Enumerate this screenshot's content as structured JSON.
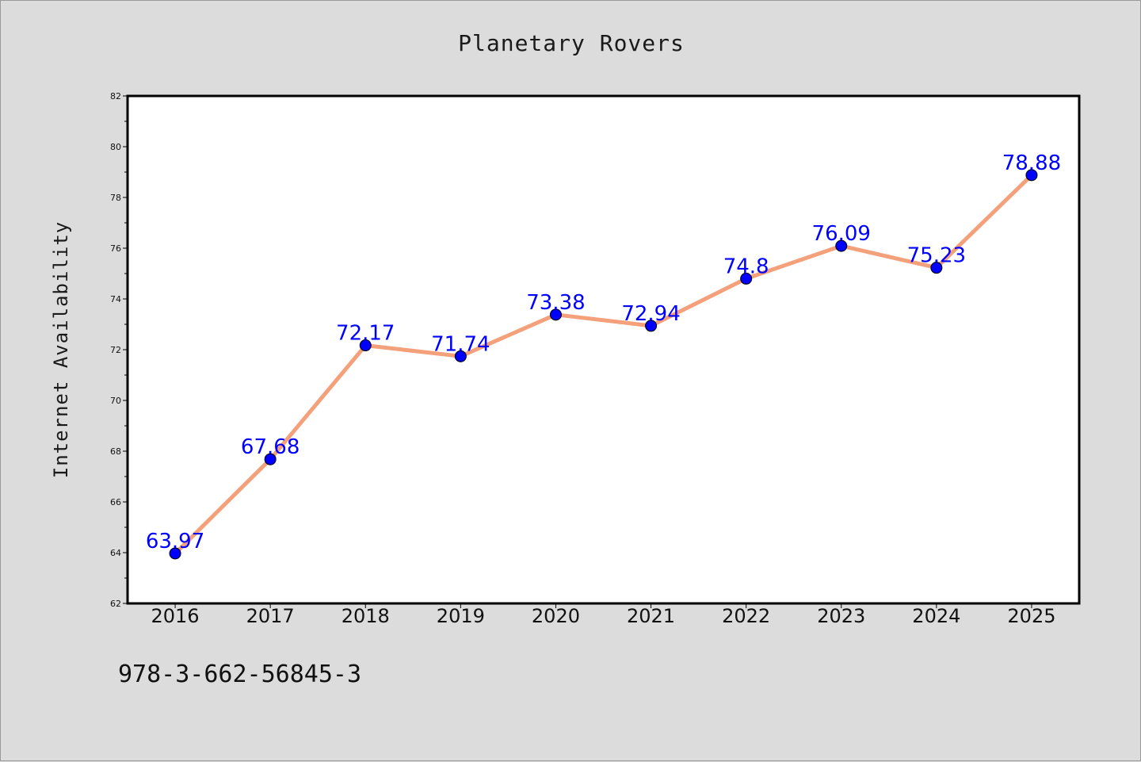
{
  "chart_data": {
    "type": "line",
    "title": "Planetary Rovers",
    "xlabel": "",
    "ylabel": "Internet Availability",
    "categories": [
      "2016",
      "2017",
      "2018",
      "2019",
      "2020",
      "2021",
      "2022",
      "2023",
      "2024",
      "2025"
    ],
    "series": [
      {
        "values": [
          63.97,
          67.68,
          72.17,
          71.74,
          73.38,
          72.94,
          74.8,
          76.09,
          75.23,
          78.88
        ],
        "labels": [
          "63.97",
          "67.68",
          "72.17",
          "71.74",
          "73.38",
          "72.94",
          "74.8",
          "76.09",
          "75.23",
          "78.88"
        ],
        "line_color": "#f4a07a",
        "marker_color": "#0000ff"
      }
    ],
    "ylim": [
      62,
      82
    ],
    "yticks": [
      "62",
      "64",
      "66",
      "68",
      "70",
      "72",
      "74",
      "76",
      "78",
      "80",
      "82"
    ],
    "grid": false,
    "legend": "none"
  },
  "footer": {
    "code": "978-3-662-56845-3"
  }
}
